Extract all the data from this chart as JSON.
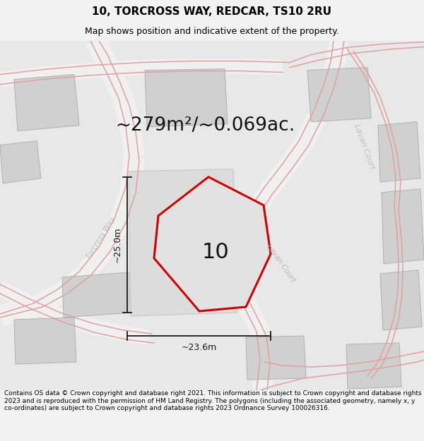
{
  "title": "10, TORCROSS WAY, REDCAR, TS10 2RU",
  "subtitle": "Map shows position and indicative extent of the property.",
  "area_text": "~279m²/~0.069ac.",
  "label_number": "10",
  "dim_width": "~23.6m",
  "dim_height": "~25.0m",
  "footer": "Contains OS data © Crown copyright and database right 2021. This information is subject to Crown copyright and database rights 2023 and is reproduced with the permission of HM Land Registry. The polygons (including the associated geometry, namely x, y co-ordinates) are subject to Crown copyright and database rights 2023 Ordnance Survey 100026316.",
  "bg_color": "#f2f2f2",
  "map_bg": "#e8e8e8",
  "building_color": "#d0d0d0",
  "building_stroke": "#b0b0b0",
  "road_fill": "#f5f5f5",
  "plot_stroke": "#cc0000",
  "plot_fill": "#e2e2e2",
  "dim_color": "#1a1a1a",
  "road_line_color": "#e0a0a0",
  "street_color": "#b8b8b8",
  "title_fontsize": 11,
  "subtitle_fontsize": 9,
  "area_fontsize": 19,
  "number_fontsize": 22,
  "footer_fontsize": 6.5
}
